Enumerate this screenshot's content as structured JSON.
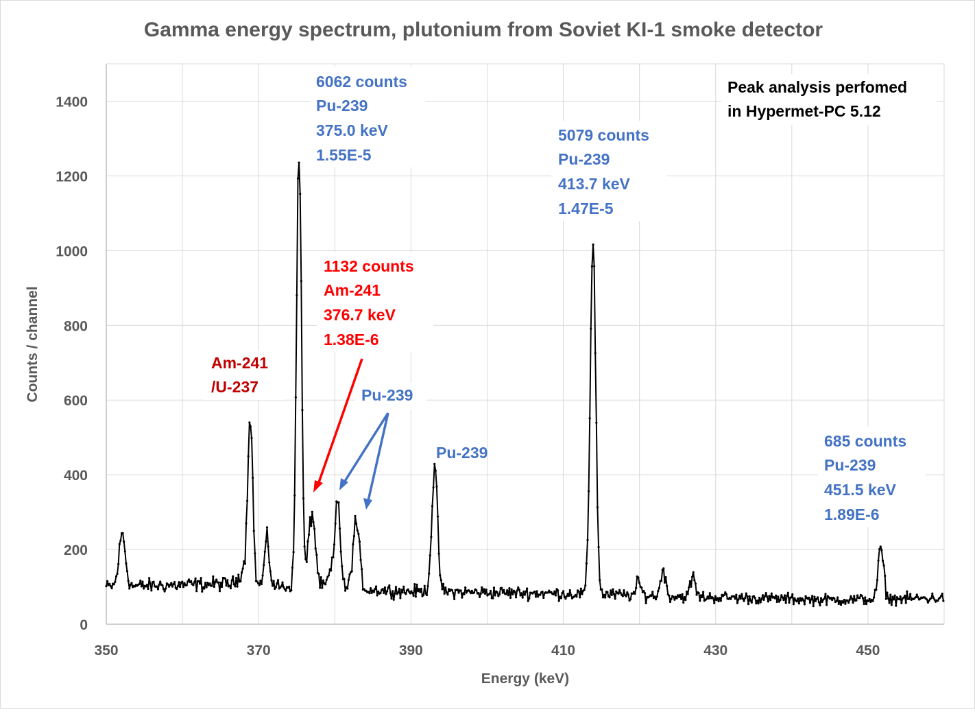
{
  "chart_data": {
    "type": "line",
    "title": "Gamma energy spectrum, plutonium from Soviet KI-1 smoke detector",
    "xlabel": "Energy (keV)",
    "ylabel": "Counts / channel",
    "xlim": [
      350,
      460
    ],
    "ylim": [
      0,
      1500
    ],
    "xticks": [
      350,
      370,
      390,
      410,
      430,
      450
    ],
    "yticks": [
      0,
      200,
      400,
      600,
      800,
      1000,
      1200,
      1400
    ],
    "grid": "vertical-and-horizontal",
    "legend": "none",
    "baseline": [
      [
        350,
        100
      ],
      [
        365,
        108
      ],
      [
        375,
        100
      ],
      [
        390,
        88
      ],
      [
        410,
        82
      ],
      [
        430,
        72
      ],
      [
        445,
        65
      ],
      [
        460,
        70
      ]
    ],
    "peaks": [
      {
        "center": 352.1,
        "height": 140,
        "sigma": 0.42
      },
      {
        "center": 368.0,
        "height": 40,
        "sigma": 0.55
      },
      {
        "center": 368.9,
        "height": 460,
        "sigma": 0.32
      },
      {
        "center": 371.1,
        "height": 120,
        "sigma": 0.32
      },
      {
        "center": 375.3,
        "height": 1190,
        "sigma": 0.32
      },
      {
        "center": 377.0,
        "height": 200,
        "sigma": 0.45
      },
      {
        "center": 379.6,
        "height": 45,
        "sigma": 0.45
      },
      {
        "center": 380.4,
        "height": 235,
        "sigma": 0.32
      },
      {
        "center": 382.8,
        "height": 180,
        "sigma": 0.42
      },
      {
        "center": 393.1,
        "height": 325,
        "sigma": 0.38
      },
      {
        "center": 413.9,
        "height": 960,
        "sigma": 0.36
      },
      {
        "center": 419.9,
        "height": 35,
        "sigma": 0.3
      },
      {
        "center": 423.1,
        "height": 75,
        "sigma": 0.3
      },
      {
        "center": 427.0,
        "height": 55,
        "sigma": 0.3
      },
      {
        "center": 451.7,
        "height": 135,
        "sigma": 0.35
      }
    ],
    "annotations": [
      {
        "lines": [
          "6062 counts",
          "Pu-239",
          "375.0 keV",
          "1.55E-5"
        ],
        "energy_kev": 375.0,
        "color": "#4472c4"
      },
      {
        "lines": [
          "5079 counts",
          "Pu-239",
          "413.7 keV",
          "1.47E-5"
        ],
        "energy_kev": 413.7,
        "color": "#4472c4"
      },
      {
        "lines": [
          "1132 counts",
          "Am-241",
          "376.7 keV",
          "1.38E-6"
        ],
        "energy_kev": 376.7,
        "color": "#ff0000"
      },
      {
        "lines": [
          "685 counts",
          "Pu-239",
          "451.5 keV",
          "1.89E-6"
        ],
        "energy_kev": 451.5,
        "color": "#4472c4"
      },
      {
        "lines": [
          "Am-241",
          "/U-237"
        ],
        "color": "#c00000"
      },
      {
        "lines": [
          "Pu-239"
        ],
        "color": "#4472c4"
      },
      {
        "lines": [
          "Pu-239"
        ],
        "color": "#4472c4"
      },
      {
        "lines": [
          "Peak analysis perfomed",
          "in Hypermet-PC 5.12"
        ],
        "color": "#000000"
      }
    ]
  }
}
